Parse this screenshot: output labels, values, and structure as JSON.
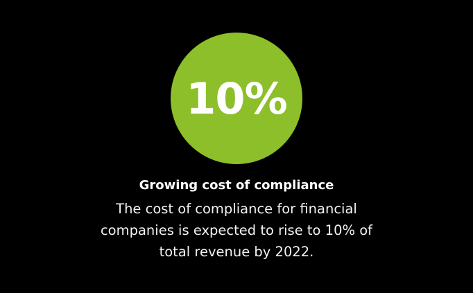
{
  "stat": "10%",
  "heading": "Growing cost of compliance",
  "body_lines": [
    "The cost of compliance for financial",
    "companies is expected to rise to 10% of",
    "total revenue by 2022."
  ]
}
